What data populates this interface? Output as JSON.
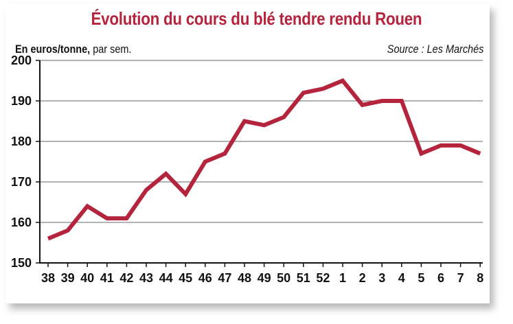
{
  "chart_data": {
    "type": "line",
    "title": "Évolution du cours du blé tendre rendu Rouen",
    "unit_bold": "En euros/tonne,",
    "unit_rest": " par sem.",
    "source": "Source : Les Marchés",
    "categories": [
      "38",
      "39",
      "40",
      "41",
      "42",
      "43",
      "44",
      "45",
      "46",
      "47",
      "48",
      "49",
      "50",
      "51",
      "52",
      "1",
      "2",
      "3",
      "4",
      "5",
      "6",
      "7",
      "8"
    ],
    "series": [
      {
        "values": [
          156,
          158,
          164,
          161,
          161,
          168,
          172,
          167,
          175,
          177,
          185,
          184,
          186,
          192,
          193,
          195,
          189,
          190,
          190,
          177,
          179,
          179,
          177
        ]
      }
    ],
    "yticks": [
      150,
      160,
      170,
      180,
      190,
      200
    ],
    "ylim": [
      150,
      200
    ],
    "grid": true,
    "line_color": "#b5243d"
  }
}
